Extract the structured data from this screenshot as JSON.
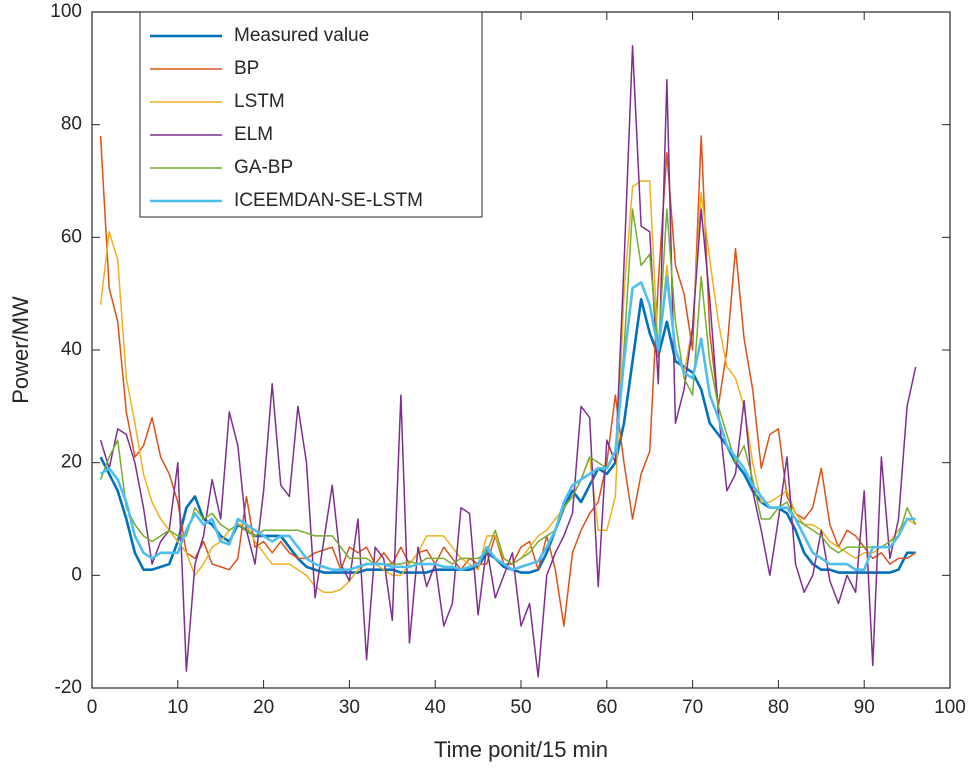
{
  "chart_data": {
    "type": "line",
    "xlabel": "Time ponit/15 min",
    "ylabel": "Power/MW",
    "xlim": [
      0,
      100
    ],
    "xticks": [
      0,
      10,
      20,
      30,
      40,
      50,
      60,
      70,
      80,
      90,
      100
    ],
    "ylim": [
      -20,
      100
    ],
    "yticks": [
      -20,
      0,
      20,
      40,
      60,
      80,
      100
    ],
    "legend": "upper-left",
    "x": [
      1,
      2,
      3,
      4,
      5,
      6,
      7,
      8,
      9,
      10,
      11,
      12,
      13,
      14,
      15,
      16,
      17,
      18,
      19,
      20,
      21,
      22,
      23,
      24,
      25,
      26,
      27,
      28,
      29,
      30,
      31,
      32,
      33,
      34,
      35,
      36,
      37,
      38,
      39,
      40,
      41,
      42,
      43,
      44,
      45,
      46,
      47,
      48,
      49,
      50,
      51,
      52,
      53,
      54,
      55,
      56,
      57,
      58,
      59,
      60,
      61,
      62,
      63,
      64,
      65,
      66,
      67,
      68,
      69,
      70,
      71,
      72,
      73,
      74,
      75,
      76,
      77,
      78,
      79,
      80,
      81,
      82,
      83,
      84,
      85,
      86,
      87,
      88,
      89,
      90,
      91,
      92,
      93,
      94,
      95,
      96
    ],
    "series": [
      {
        "name": "Measured value",
        "color": "#0072BD",
        "line_width": 2.6,
        "values": [
          21,
          18,
          15,
          10,
          4,
          1,
          1,
          1.5,
          2,
          6,
          12,
          14,
          10,
          9,
          7,
          6,
          9,
          8,
          7,
          7,
          7,
          7,
          5,
          3,
          1.5,
          1,
          0.5,
          0.5,
          0.5,
          0.5,
          0.5,
          1,
          1,
          1,
          1,
          0.5,
          0.5,
          0.5,
          0.5,
          1,
          1,
          1,
          1,
          1,
          1.5,
          4,
          3,
          1.5,
          1,
          0.5,
          0.5,
          1,
          4,
          8,
          12,
          15,
          13,
          16,
          19,
          18,
          20,
          27,
          38,
          49,
          43,
          39,
          45,
          38,
          37,
          36,
          33,
          27,
          25,
          23,
          20,
          18,
          15,
          13,
          12,
          12,
          11,
          8,
          4,
          2,
          1,
          1,
          0.5,
          0.5,
          0.5,
          0.5,
          0.5,
          0.5,
          0.5,
          1,
          4,
          4
        ]
      },
      {
        "name": "BP",
        "color": "#D95319",
        "line_width": 1.5,
        "values": [
          78,
          51,
          45,
          29,
          21,
          23,
          28,
          21,
          18,
          13,
          4,
          3,
          6,
          2,
          1.5,
          1,
          3,
          14,
          5,
          6,
          4,
          6,
          4,
          3,
          3,
          4,
          4.5,
          5,
          1,
          5,
          4,
          5,
          2,
          4,
          2,
          5,
          2,
          4,
          4.5,
          2,
          5,
          3,
          1,
          3,
          2,
          2,
          7,
          2,
          2,
          5,
          6,
          1,
          7,
          1,
          -9,
          4,
          8,
          11,
          13,
          20,
          32,
          20,
          10,
          18,
          22,
          52,
          75,
          55,
          50,
          40,
          78,
          43,
          30,
          40,
          58,
          42,
          33,
          19,
          25,
          26,
          14,
          11,
          10,
          12,
          19,
          9,
          5,
          8,
          7,
          5,
          3,
          4,
          2,
          3,
          3,
          4
        ]
      },
      {
        "name": "LSTM",
        "color": "#EDB120",
        "line_width": 1.5,
        "values": [
          48,
          61,
          56,
          35,
          27,
          18,
          13,
          10,
          8,
          6,
          4,
          0,
          2,
          5,
          6,
          8,
          9,
          9,
          6,
          4,
          2,
          2,
          2,
          1,
          0,
          -2,
          -3,
          -3,
          -2.5,
          -1,
          1,
          2,
          2,
          1,
          0,
          0,
          2,
          4,
          7,
          7,
          7,
          5,
          3,
          2,
          1,
          7,
          7,
          3,
          2,
          3,
          5,
          7,
          8,
          10,
          12,
          14,
          17,
          21,
          8,
          8,
          14,
          50,
          69,
          70,
          70,
          39,
          55,
          40,
          36,
          44,
          68,
          56,
          45,
          37,
          35,
          30,
          20,
          13,
          13,
          14,
          15,
          11,
          9,
          9,
          8,
          6,
          5,
          4,
          3,
          4,
          4,
          5,
          6,
          8,
          10,
          9
        ]
      },
      {
        "name": "ELM",
        "color": "#7E2F8E",
        "line_width": 1.5,
        "values": [
          24,
          19,
          26,
          25,
          20,
          12,
          2,
          6,
          8,
          20,
          -17,
          2,
          7,
          17,
          10,
          29,
          23,
          8,
          2,
          15,
          34,
          16,
          14,
          30,
          20,
          -4,
          6,
          16,
          2,
          -1,
          10,
          -15,
          5,
          3,
          -8,
          32,
          -12,
          5,
          -2,
          2,
          -9,
          -5,
          12,
          11,
          -7,
          5,
          -4,
          0,
          4,
          -9,
          -5,
          -18,
          0,
          4,
          7,
          11,
          30,
          28,
          -2,
          24,
          20,
          55,
          94,
          62,
          61,
          34,
          88,
          27,
          33,
          44,
          65,
          49,
          29,
          15,
          18,
          31,
          15,
          8,
          0,
          10,
          21,
          2,
          -3,
          0,
          8,
          -1,
          -5,
          0,
          -3,
          15,
          -16,
          21,
          3,
          10,
          30,
          37
        ]
      },
      {
        "name": "GA-BP",
        "color": "#77AC30",
        "line_width": 1.5,
        "values": [
          17,
          21,
          24,
          12,
          9,
          7,
          6,
          7,
          8,
          7,
          7,
          12,
          10,
          11,
          9,
          8,
          9,
          8,
          7,
          8,
          8,
          8,
          8,
          8,
          7.5,
          7,
          7,
          7,
          5,
          3,
          3,
          3,
          2,
          2,
          2,
          2,
          2.5,
          2,
          3,
          3,
          3,
          2,
          3,
          3,
          3,
          4,
          8,
          3,
          2,
          3,
          4,
          6,
          7,
          8,
          12,
          14,
          17,
          21,
          20,
          19,
          22,
          40,
          65,
          55,
          57,
          40,
          65,
          45,
          35,
          32,
          53,
          38,
          30,
          25,
          20,
          23,
          17,
          10,
          10,
          12,
          13,
          10,
          9,
          8,
          7,
          5,
          4,
          5,
          5,
          5,
          5,
          5,
          6,
          7,
          12,
          9
        ]
      },
      {
        "name": "ICEEMDAN-SE-LSTM",
        "color": "#4DBEEE",
        "line_width": 2.6,
        "values": [
          18,
          19,
          17,
          13,
          7,
          4,
          3,
          4,
          4,
          4,
          8,
          11,
          9,
          10,
          6,
          5.5,
          10,
          9,
          8,
          7,
          6,
          7,
          7,
          5,
          3,
          2,
          1.5,
          1,
          1,
          1,
          1.5,
          2,
          2,
          2,
          1.5,
          1.5,
          1.5,
          2,
          2,
          2,
          1.5,
          1.5,
          1,
          1.5,
          2,
          5,
          3,
          2,
          1,
          1.5,
          2,
          2.5,
          5,
          8,
          13,
          16,
          17,
          18,
          19,
          19,
          22,
          38,
          51,
          52,
          48,
          40,
          53,
          40,
          36,
          35,
          42,
          32,
          28,
          23,
          21,
          19,
          16,
          14,
          12,
          12,
          12,
          10,
          7,
          4,
          3,
          2,
          2,
          2,
          1,
          1,
          5,
          5,
          5,
          7,
          10,
          10
        ]
      }
    ]
  }
}
